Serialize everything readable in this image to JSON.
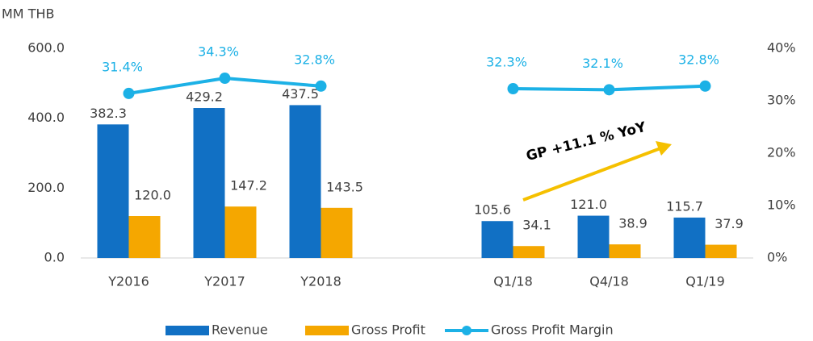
{
  "chart_data": {
    "type": "bar",
    "y_label": "MM THB",
    "categories": [
      "Y2016",
      "Y2017",
      "Y2018",
      null,
      "Q1/18",
      "Q4/18",
      "Q1/19"
    ],
    "series": [
      {
        "name": "Revenue",
        "type": "bar",
        "color": "#1170c4",
        "values": [
          382.3,
          429.2,
          437.5,
          null,
          105.6,
          121.0,
          115.7
        ],
        "value_labels": [
          "382.3",
          "429.2",
          "437.5",
          null,
          "105.6",
          "121.0",
          "115.7"
        ]
      },
      {
        "name": "Gross Profit",
        "type": "bar",
        "color": "#f5a700",
        "values": [
          120.0,
          147.2,
          143.5,
          null,
          34.1,
          38.9,
          37.9
        ],
        "value_labels": [
          "120.0",
          "147.2",
          "143.5",
          null,
          "34.1",
          "38.9",
          "37.9"
        ]
      },
      {
        "name": "Gross Profit Margin",
        "type": "line",
        "axis": "y2",
        "color": "#1cb1e6",
        "values": [
          31.4,
          34.3,
          32.8,
          null,
          32.3,
          32.1,
          32.8
        ],
        "value_labels": [
          "31.4%",
          "34.3%",
          "32.8%",
          null,
          "32.3%",
          "32.1%",
          "32.8%"
        ]
      }
    ],
    "ylim": [
      0,
      600
    ],
    "yticks": [
      {
        "value": 0,
        "label": "0.0"
      },
      {
        "value": 200,
        "label": "200.0"
      },
      {
        "value": 400,
        "label": "400.0"
      },
      {
        "value": 600,
        "label": "600.0"
      }
    ],
    "y2lim": [
      0,
      40
    ],
    "y2ticks": [
      {
        "value": 0,
        "label": "0%"
      },
      {
        "value": 10,
        "label": "10%"
      },
      {
        "value": 20,
        "label": "20%"
      },
      {
        "value": 30,
        "label": "30%"
      },
      {
        "value": 40,
        "label": "40%"
      }
    ],
    "annotation": "GP +11.1 % YoY",
    "grid": false,
    "legend": "bottom"
  }
}
